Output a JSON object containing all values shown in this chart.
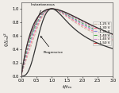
{
  "title": "",
  "xlabel": "t/t_m",
  "ylabel": "(j/j_m)^2",
  "xlim": [
    0,
    3.0
  ],
  "ylim": [
    0.0,
    1.09
  ],
  "xticks": [
    0.0,
    0.5,
    1.0,
    1.5,
    2.0,
    2.5,
    3.0
  ],
  "yticks": [
    0.0,
    0.2,
    0.4,
    0.6,
    0.8,
    1.0
  ],
  "legend_labels": [
    "-1.25 V",
    "-1.30 V",
    "-1.35 V",
    "-1.40 V",
    "-1.45 V",
    "-1.50 V"
  ],
  "curve_colors": [
    "#c8b4a0",
    "#ff6688",
    "#8888dd",
    "#44aa44",
    "#cc88cc",
    "#cc3333"
  ],
  "background_color": "#f0ede8",
  "annotation_instantaneous": "Instantaneous",
  "annotation_progressive": "Progressive",
  "alphas": [
    0.55,
    0.65,
    0.74,
    0.82,
    0.9,
    0.98
  ]
}
